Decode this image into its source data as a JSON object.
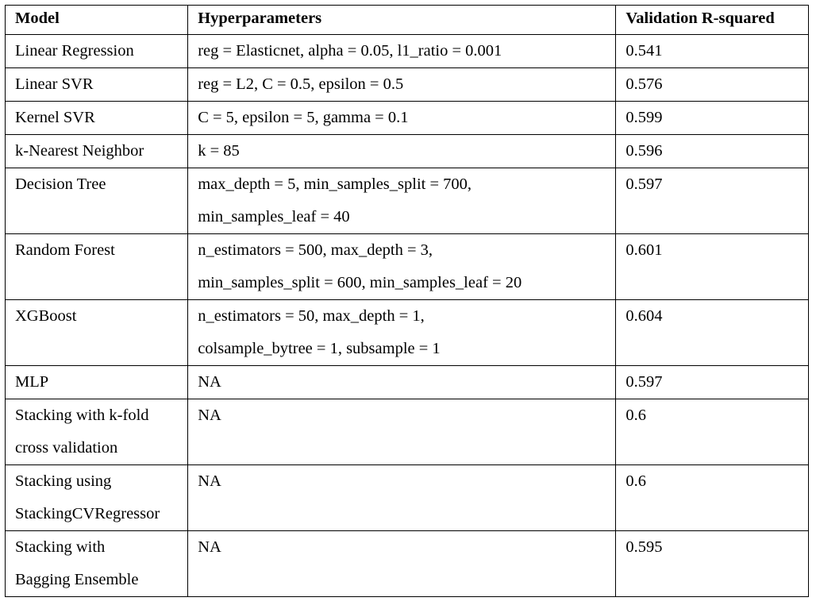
{
  "table": {
    "headers": {
      "model": "Model",
      "hyperparameters": "Hyperparameters",
      "r2": "Validation R-squared"
    },
    "rows": [
      {
        "model": [
          "Linear Regression"
        ],
        "hyper": [
          "reg = Elasticnet, alpha = 0.05, l1_ratio = 0.001"
        ],
        "r2": "0.541"
      },
      {
        "model": [
          "Linear SVR"
        ],
        "hyper": [
          "reg = L2, C = 0.5, epsilon = 0.5"
        ],
        "r2": "0.576"
      },
      {
        "model": [
          "Kernel SVR"
        ],
        "hyper": [
          "C = 5, epsilon = 5, gamma = 0.1"
        ],
        "r2": "0.599"
      },
      {
        "model": [
          "k-Nearest Neighbor"
        ],
        "hyper": [
          "k = 85"
        ],
        "r2": "0.596"
      },
      {
        "model": [
          "Decision Tree"
        ],
        "hyper": [
          "max_depth = 5, min_samples_split = 700,",
          "min_samples_leaf =  40"
        ],
        "r2": "0.597"
      },
      {
        "model": [
          "Random Forest"
        ],
        "hyper": [
          "n_estimators = 500, max_depth = 3,",
          "min_samples_split = 600, min_samples_leaf =  20"
        ],
        "r2": "0.601"
      },
      {
        "model": [
          "XGBoost"
        ],
        "hyper": [
          "n_estimators = 50, max_depth = 1,",
          "colsample_bytree = 1, subsample = 1"
        ],
        "r2": "0.604"
      },
      {
        "model": [
          "MLP"
        ],
        "hyper": [
          "NA"
        ],
        "r2": "0.597"
      },
      {
        "model": [
          "Stacking with k-fold",
          "cross validation"
        ],
        "hyper": [
          "NA"
        ],
        "r2": "0.6"
      },
      {
        "model": [
          "Stacking using",
          "StackingCVRegressor"
        ],
        "hyper": [
          "NA"
        ],
        "r2": "0.6"
      },
      {
        "model": [
          "Stacking with",
          "Bagging Ensemble"
        ],
        "hyper": [
          "NA"
        ],
        "r2": "0.595"
      }
    ]
  }
}
